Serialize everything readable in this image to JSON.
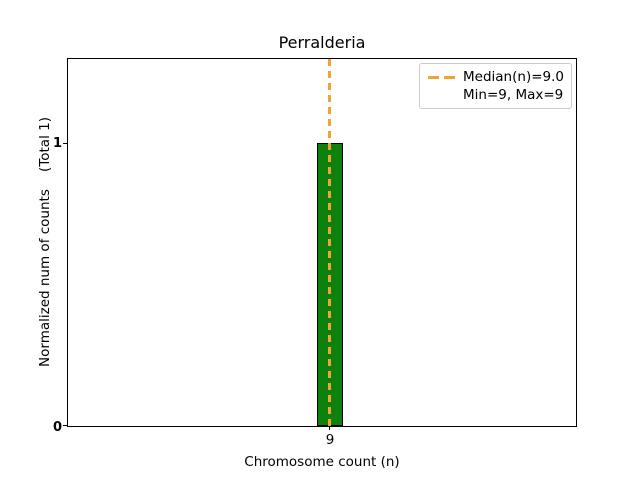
{
  "figure": {
    "title": "Perralderia"
  },
  "axes": {
    "xlabel": "Chromosome count (n)",
    "ylabel": "Normalized num of counts    (Total 1)",
    "xtick_labels": [
      "9"
    ],
    "ytick_labels": [
      "1",
      "0"
    ]
  },
  "legend": {
    "items": [
      {
        "marker": "orange-dashed-line",
        "label": "Median(n)=9.0"
      },
      {
        "marker": "none",
        "label": "Min=9, Max=9"
      }
    ]
  },
  "chart_data": {
    "type": "bar",
    "title": "Perralderia",
    "xlabel": "Chromosome count (n)",
    "ylabel": "Normalized num of counts    (Total 1)",
    "categories": [
      9
    ],
    "values": [
      1
    ],
    "xticks": [
      9
    ],
    "yticks": [
      0,
      1
    ],
    "ylim": [
      0,
      1.3
    ],
    "grid": false,
    "bar_color": "#008000",
    "bar_edge_color": "#000000",
    "median_line": {
      "x": 9,
      "value": 9.0,
      "color": "#FFA500",
      "style": "dashed",
      "orientation": "vertical",
      "label": "Median(n)=9.0"
    },
    "annotations": [
      "Min=9, Max=9",
      "Total 1"
    ],
    "legend_position": "upper right"
  }
}
